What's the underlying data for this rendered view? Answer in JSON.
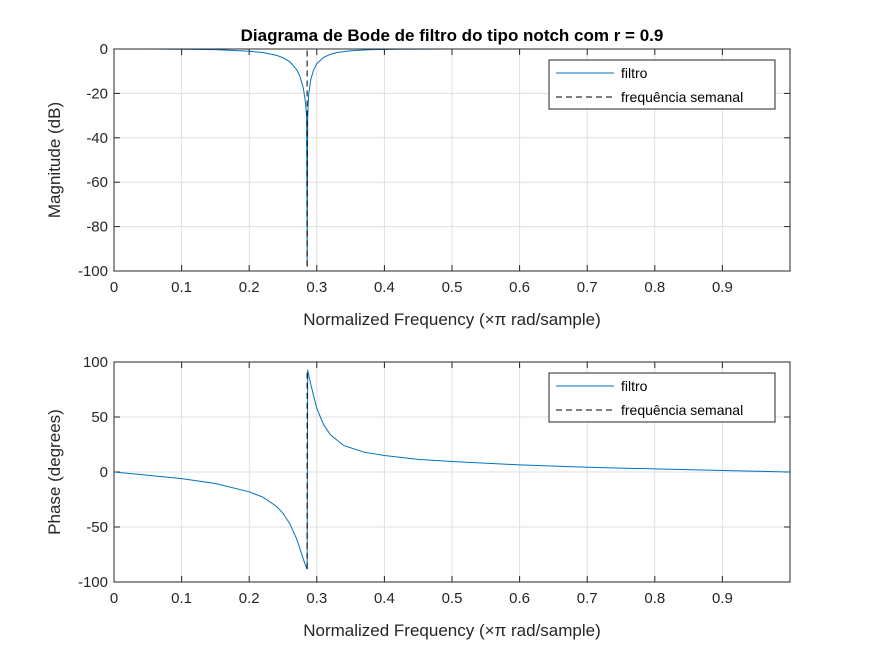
{
  "chart_data": [
    {
      "type": "line",
      "title": "Diagrama de Bode de filtro do tipo notch com r = 0.9",
      "xlabel": "Normalized Frequency  (×π rad/sample)",
      "ylabel": "Magnitude (dB)",
      "xlim": [
        0,
        1
      ],
      "ylim": [
        -100,
        0
      ],
      "xticks": [
        "0",
        "0.1",
        "0.2",
        "0.3",
        "0.4",
        "0.5",
        "0.6",
        "0.7",
        "0.8",
        "0.9"
      ],
      "yticks": [
        "0",
        "-20",
        "-40",
        "-60",
        "-80",
        "-100"
      ],
      "grid": true,
      "legend": {
        "placement": "top-right",
        "entries": [
          "filtro",
          "frequência semanal"
        ]
      },
      "series": [
        {
          "name": "filtro",
          "color": "#0072BD",
          "style": "solid",
          "x": [
            0,
            0.05,
            0.1,
            0.15,
            0.2,
            0.22,
            0.24,
            0.25,
            0.26,
            0.27,
            0.275,
            0.28,
            0.283,
            0.285,
            0.2857,
            0.2865,
            0.288,
            0.291,
            0.295,
            0.3,
            0.31,
            0.32,
            0.33,
            0.35,
            0.38,
            0.42,
            0.5,
            0.6,
            0.8,
            1.0
          ],
          "y": [
            0,
            0,
            -0.1,
            -0.3,
            -1.0,
            -1.6,
            -2.8,
            -3.9,
            -5.7,
            -9.2,
            -12.3,
            -17.5,
            -23.5,
            -30.5,
            -98,
            -30.5,
            -20.5,
            -13.9,
            -9.7,
            -6.6,
            -3.8,
            -2.4,
            -1.6,
            -0.8,
            -0.3,
            -0.1,
            0,
            0,
            0,
            0
          ]
        },
        {
          "name": "frequência semanal",
          "color": "#000000",
          "style": "dashed",
          "x": [
            0.2857,
            0.2857
          ],
          "y": [
            -98,
            0
          ]
        }
      ]
    },
    {
      "type": "line",
      "title": "",
      "xlabel": "Normalized Frequency  (×π rad/sample)",
      "ylabel": "Phase (degrees)",
      "xlim": [
        0,
        1
      ],
      "ylim": [
        -100,
        100
      ],
      "xticks": [
        "0",
        "0.1",
        "0.2",
        "0.3",
        "0.4",
        "0.5",
        "0.6",
        "0.7",
        "0.8",
        "0.9"
      ],
      "yticks": [
        "100",
        "50",
        "0",
        "-50",
        "-100"
      ],
      "grid": true,
      "legend": {
        "placement": "top-right",
        "entries": [
          "filtro",
          "frequência semanal"
        ]
      },
      "series": [
        {
          "name": "filtro",
          "color": "#0072BD",
          "style": "solid",
          "x": [
            0,
            0.05,
            0.1,
            0.15,
            0.2,
            0.22,
            0.24,
            0.25,
            0.26,
            0.27,
            0.275,
            0.28,
            0.283,
            0.285,
            0.2857,
            0.2865,
            0.288,
            0.291,
            0.295,
            0.3,
            0.31,
            0.32,
            0.34,
            0.37,
            0.4,
            0.45,
            0.5,
            0.6,
            0.7,
            0.8,
            0.9,
            1.0
          ],
          "y": [
            0,
            -3,
            -6,
            -10.5,
            -18,
            -22.8,
            -31,
            -37.5,
            -47,
            -60.5,
            -69.5,
            -79,
            -84.5,
            -87.5,
            -88,
            93,
            88,
            80,
            70,
            58,
            43,
            34,
            24,
            18,
            15,
            11.5,
            9.5,
            6.5,
            4.3,
            2.8,
            1.4,
            0
          ]
        },
        {
          "name": "frequência semanal",
          "color": "#000000",
          "style": "dashed",
          "x": [
            0.2857,
            0.2857
          ],
          "y": [
            -88,
            93
          ]
        }
      ]
    }
  ]
}
